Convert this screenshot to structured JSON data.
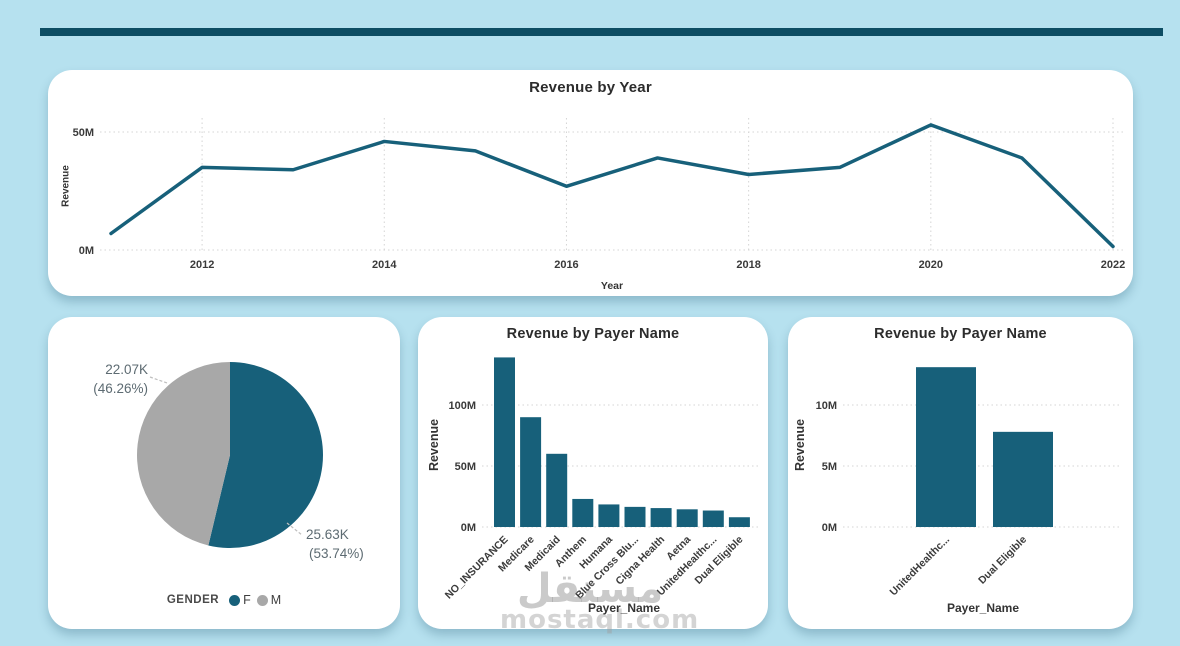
{
  "page": {
    "background": "#b6e1ef",
    "accent_bar_color": "#0d4d63",
    "card_background": "#ffffff",
    "teal": "#17607a",
    "gray": "#a8a8a8",
    "gridline_color": "#d4d4d4",
    "axis_text_color": "#3a3a3a"
  },
  "watermark": {
    "word": "مستقل",
    "site": "mostaql.com"
  },
  "chart_data": [
    {
      "id": "revenue_by_year",
      "type": "line",
      "title": "Revenue by Year",
      "xlabel": "Year",
      "ylabel": "Revenue",
      "x": [
        2011,
        2012,
        2013,
        2014,
        2015,
        2016,
        2017,
        2018,
        2019,
        2020,
        2021,
        2022
      ],
      "values": [
        7,
        35,
        34,
        46,
        42,
        27,
        39,
        32,
        35,
        53,
        39,
        1.5
      ],
      "unit": "M",
      "xticks": [
        2012,
        2014,
        2016,
        2018,
        2020,
        2022
      ],
      "yticks": [
        {
          "v": 0,
          "label": "0M"
        },
        {
          "v": 50,
          "label": "50M"
        }
      ],
      "ylim": [
        0,
        56
      ],
      "grid": "dotted",
      "line_color": "#17607a"
    },
    {
      "id": "gender_pie",
      "type": "pie",
      "legend_title": "GENDER",
      "legend_position": "bottom",
      "slices": [
        {
          "name": "F",
          "value_label": "25.63K",
          "pct": 53.74,
          "pct_label": "(53.74%)",
          "color": "#17607a"
        },
        {
          "name": "M",
          "value_label": "22.07K",
          "pct": 46.26,
          "pct_label": "(46.26%)",
          "color": "#a8a8a8"
        }
      ]
    },
    {
      "id": "revenue_by_payer",
      "type": "bar",
      "title": "Revenue by Payer Name",
      "xlabel": "Payer_Name",
      "ylabel": "Revenue",
      "categories": [
        "NO_INSURANCE",
        "Medicare",
        "Medicaid",
        "Anthem",
        "Humana",
        "Blue Cross Blu...",
        "Cigna Health",
        "Aetna",
        "UnitedHealthc...",
        "Dual Eligible"
      ],
      "values": [
        139,
        90,
        60,
        23,
        18.5,
        16.5,
        15.5,
        14.5,
        13.5,
        8
      ],
      "unit": "M",
      "yticks": [
        {
          "v": 0,
          "label": "0M"
        },
        {
          "v": 50,
          "label": "50M"
        },
        {
          "v": 100,
          "label": "100M"
        }
      ],
      "ylim": [
        0,
        147
      ],
      "grid": "dotted",
      "bar_color": "#17607a"
    },
    {
      "id": "revenue_by_payer_filtered",
      "type": "bar",
      "title": "Revenue by Payer Name",
      "xlabel": "Payer_Name",
      "ylabel": "Revenue",
      "categories": [
        "UnitedHealthc...",
        "Dual Eligible"
      ],
      "values": [
        13.1,
        7.8
      ],
      "unit": "M",
      "yticks": [
        {
          "v": 0,
          "label": "0M"
        },
        {
          "v": 5,
          "label": "5M"
        },
        {
          "v": 10,
          "label": "10M"
        }
      ],
      "ylim": [
        0,
        14.8
      ],
      "grid": "dotted",
      "bar_color": "#17607a"
    }
  ]
}
